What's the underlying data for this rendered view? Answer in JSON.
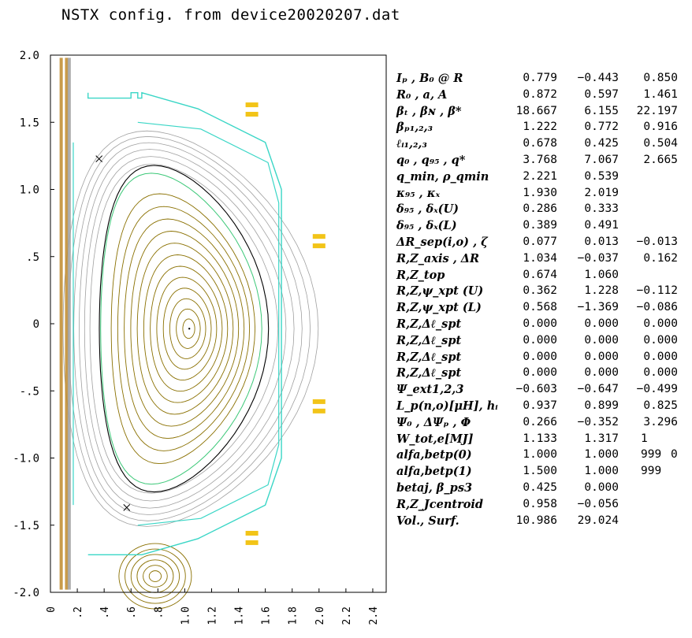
{
  "title": "NSTX config. from device20020207.dat",
  "chart_data": {
    "type": "contour",
    "xlim": [
      0,
      2.5
    ],
    "ylim": [
      -2.0,
      2.0
    ],
    "x_ticks": [
      "0",
      ".2",
      ".4",
      ".6",
      ".8",
      "1.0",
      "1.2",
      "1.4",
      "1.6",
      "1.8",
      "2.0",
      "2.2",
      "2.4"
    ],
    "x_tick_values": [
      0,
      0.2,
      0.4,
      0.6,
      0.8,
      1.0,
      1.2,
      1.4,
      1.6,
      1.8,
      2.0,
      2.2,
      2.4
    ],
    "y_ticks": [
      "2.0",
      "1.5",
      "1.0",
      ".5",
      "0",
      "-.5",
      "-1.0",
      "-1.5",
      "-2.0"
    ],
    "y_tick_values": [
      2.0,
      1.5,
      1.0,
      0.5,
      0,
      -0.5,
      -1.0,
      -1.5,
      -2.0
    ],
    "magnetic_axis": {
      "R": 1.034,
      "Z": -0.037
    },
    "xpoint_upper": {
      "R": 0.362,
      "Z": 1.228
    },
    "xpoint_lower": {
      "R": 0.568,
      "Z": -1.369
    },
    "colors": {
      "flux_inside": "#8a7000",
      "flux_outside": "#a0a0a0",
      "separatrix": "#000000",
      "limiter": "#3ad6c6",
      "coils": "#f2c418",
      "secondary_separatrix": "#3cc878"
    },
    "coils": [
      {
        "R": 1.5,
        "Z": 1.63
      },
      {
        "R": 1.5,
        "Z": 1.56
      },
      {
        "R": 2.0,
        "Z": 0.65
      },
      {
        "R": 2.0,
        "Z": 0.58
      },
      {
        "R": 2.0,
        "Z": -0.58
      },
      {
        "R": 2.0,
        "Z": -0.65
      },
      {
        "R": 1.5,
        "Z": -1.56
      },
      {
        "R": 1.5,
        "Z": -1.63
      }
    ]
  },
  "params": [
    {
      "label": "Iₚ , B₀ @ R",
      "v": [
        "0.779",
        "−0.443",
        "0.850"
      ]
    },
    {
      "label": "R₀ , a, A",
      "v": [
        "0.872",
        "0.597",
        "1.461"
      ]
    },
    {
      "label": "βₜ , βɴ , β*",
      "v": [
        "18.667",
        "6.155",
        "22.197"
      ]
    },
    {
      "label": "βₚ₁,₂,₃",
      "v": [
        "1.222",
        "0.772",
        "0.916"
      ]
    },
    {
      "label": "ℓᵢ₁,₂,₃",
      "v": [
        "0.678",
        "0.425",
        "0.504"
      ]
    },
    {
      "label": "q₀ , q₉₅ , q*",
      "v": [
        "3.768",
        "7.067",
        "2.665"
      ]
    },
    {
      "label": "q_min, ρ_qmin",
      "v": [
        "2.221",
        "0.539"
      ]
    },
    {
      "label": "κ₉₅ , κₓ",
      "v": [
        "1.930",
        "2.019"
      ]
    },
    {
      "label": "δ₉₅ , δₓ(U)",
      "v": [
        "0.286",
        "0.333"
      ]
    },
    {
      "label": "δ₉₅ , δₓ(L)",
      "v": [
        "0.389",
        "0.491"
      ]
    },
    {
      "label": "ΔR_sep(i,o) , ζ",
      "v": [
        "0.077",
        "0.013",
        "−0.013"
      ]
    },
    {
      "label": "R,Z_axis , ΔR",
      "v": [
        "1.034",
        "−0.037",
        "0.162"
      ]
    },
    {
      "label": "R,Z_top",
      "v": [
        "0.674",
        "1.060"
      ]
    },
    {
      "label": "R,Z,ψ_xpt (U)",
      "v": [
        "0.362",
        "1.228",
        "−0.112"
      ]
    },
    {
      "label": "R,Z,ψ_xpt (L)",
      "v": [
        "0.568",
        "−1.369",
        "−0.086"
      ]
    },
    {
      "label": "R,Z,Δℓ_spt",
      "v": [
        "0.000",
        "0.000",
        "0.000"
      ]
    },
    {
      "label": "R,Z,Δℓ_spt",
      "v": [
        "0.000",
        "0.000",
        "0.000"
      ]
    },
    {
      "label": "R,Z,Δℓ_spt",
      "v": [
        "0.000",
        "0.000",
        "0.000"
      ]
    },
    {
      "label": "R,Z,Δℓ_spt",
      "v": [
        "0.000",
        "0.000",
        "0.000"
      ]
    },
    {
      "label": "Ψ_ext1,2,3",
      "v": [
        "−0.603",
        "−0.647",
        "−0.499"
      ]
    },
    {
      "label": "L_p(n,o)[μH], hᵢ",
      "v": [
        "0.937",
        "0.899",
        "0.825"
      ]
    },
    {
      "label": "Ψ₀ , ΔΨₚ , Φ",
      "v": [
        "0.266",
        "−0.352",
        "3.296"
      ]
    },
    {
      "label": "W_tot,e[MJ]",
      "v": [
        "1.133",
        "1.317",
        "1"
      ]
    },
    {
      "label": "alfa,betp(0)",
      "v": [
        "1.000",
        "1.000",
        "999",
        "0"
      ]
    },
    {
      "label": "alfa,betp(1)",
      "v": [
        "1.500",
        "1.000",
        "999"
      ]
    },
    {
      "label": "betaj, β_ps3",
      "v": [
        "0.425",
        "0.000"
      ]
    },
    {
      "label": "R,Z_Jcentroid",
      "v": [
        "0.958",
        "−0.056"
      ]
    },
    {
      "label": "Vol., Surf.",
      "v": [
        "10.986",
        "29.024"
      ]
    }
  ]
}
